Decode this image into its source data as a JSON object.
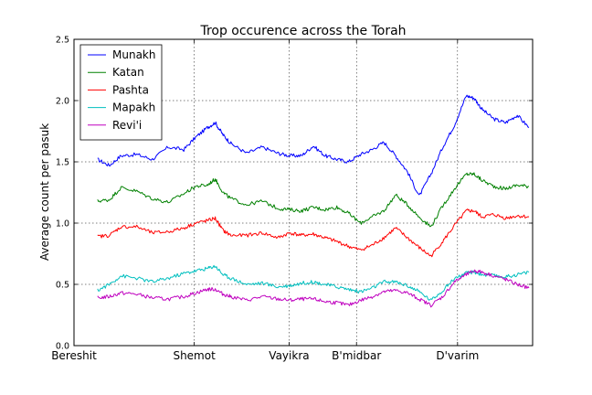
{
  "chart_data": {
    "type": "line",
    "title": "Trop occurence across the Torah",
    "xlabel": "",
    "ylabel": "Average count per pasuk",
    "ylim": [
      0.0,
      2.5
    ],
    "yticks": [
      "0.0",
      "0.5",
      "1.0",
      "1.5",
      "2.0",
      "2.5"
    ],
    "xlim": [
      0,
      5846
    ],
    "xticks": [
      {
        "label": "Bereshit",
        "x": 0
      },
      {
        "label": "Shemot",
        "x": 1533
      },
      {
        "label": "Vayikra",
        "x": 2742
      },
      {
        "label": "B'midbar",
        "x": 3601
      },
      {
        "label": "D'varim",
        "x": 4889
      }
    ],
    "grid": true,
    "legend_position": "top-left",
    "series": [
      {
        "name": "Munakh",
        "color": "#0000ff",
        "x": [
          300,
          450,
          600,
          800,
          1000,
          1200,
          1400,
          1550,
          1700,
          1800,
          1900,
          2000,
          2200,
          2400,
          2600,
          2750,
          2900,
          3050,
          3200,
          3350,
          3500,
          3650,
          3800,
          3950,
          4100,
          4250,
          4400,
          4550,
          4700,
          4850,
          5000,
          5100,
          5200,
          5350,
          5500,
          5650,
          5800
        ],
        "y": [
          1.52,
          1.47,
          1.55,
          1.56,
          1.52,
          1.62,
          1.6,
          1.7,
          1.78,
          1.82,
          1.72,
          1.65,
          1.57,
          1.62,
          1.57,
          1.55,
          1.55,
          1.63,
          1.55,
          1.52,
          1.5,
          1.56,
          1.6,
          1.66,
          1.55,
          1.42,
          1.22,
          1.4,
          1.62,
          1.8,
          2.04,
          2.02,
          1.93,
          1.85,
          1.82,
          1.88,
          1.78
        ]
      },
      {
        "name": "Katan",
        "color": "#008000",
        "x": [
          300,
          450,
          600,
          800,
          1000,
          1200,
          1400,
          1550,
          1700,
          1800,
          1900,
          2000,
          2200,
          2400,
          2600,
          2750,
          2900,
          3050,
          3200,
          3350,
          3500,
          3650,
          3800,
          3950,
          4100,
          4250,
          4400,
          4550,
          4700,
          4850,
          5000,
          5100,
          5200,
          5350,
          5500,
          5650,
          5800
        ],
        "y": [
          1.18,
          1.19,
          1.29,
          1.26,
          1.2,
          1.17,
          1.24,
          1.3,
          1.31,
          1.36,
          1.25,
          1.2,
          1.15,
          1.18,
          1.12,
          1.11,
          1.1,
          1.13,
          1.11,
          1.13,
          1.08,
          1.0,
          1.05,
          1.1,
          1.23,
          1.15,
          1.05,
          0.97,
          1.14,
          1.28,
          1.4,
          1.4,
          1.35,
          1.3,
          1.28,
          1.31,
          1.3
        ]
      },
      {
        "name": "Pashta",
        "color": "#ff0000",
        "x": [
          300,
          450,
          600,
          800,
          1000,
          1200,
          1400,
          1550,
          1700,
          1800,
          1900,
          2000,
          2200,
          2400,
          2600,
          2750,
          2900,
          3050,
          3200,
          3350,
          3500,
          3650,
          3800,
          3950,
          4100,
          4250,
          4400,
          4550,
          4700,
          4850,
          5000,
          5100,
          5200,
          5350,
          5500,
          5650,
          5800
        ],
        "y": [
          0.89,
          0.9,
          0.97,
          0.97,
          0.92,
          0.93,
          0.96,
          1.0,
          1.02,
          1.04,
          0.94,
          0.9,
          0.9,
          0.92,
          0.88,
          0.92,
          0.9,
          0.91,
          0.88,
          0.85,
          0.81,
          0.78,
          0.82,
          0.88,
          0.96,
          0.88,
          0.8,
          0.73,
          0.85,
          0.98,
          1.1,
          1.1,
          1.05,
          1.07,
          1.04,
          1.06,
          1.05
        ]
      },
      {
        "name": "Mapakh",
        "color": "#00bfbf",
        "x": [
          300,
          450,
          600,
          800,
          1000,
          1200,
          1400,
          1550,
          1700,
          1800,
          1900,
          2000,
          2200,
          2400,
          2600,
          2750,
          2900,
          3050,
          3200,
          3350,
          3500,
          3650,
          3800,
          3950,
          4100,
          4250,
          4400,
          4550,
          4700,
          4850,
          5000,
          5100,
          5200,
          5350,
          5500,
          5650,
          5800
        ],
        "y": [
          0.45,
          0.5,
          0.57,
          0.55,
          0.52,
          0.55,
          0.59,
          0.61,
          0.63,
          0.65,
          0.58,
          0.55,
          0.5,
          0.51,
          0.48,
          0.49,
          0.51,
          0.52,
          0.5,
          0.48,
          0.46,
          0.44,
          0.47,
          0.52,
          0.52,
          0.49,
          0.44,
          0.37,
          0.45,
          0.55,
          0.59,
          0.6,
          0.58,
          0.57,
          0.56,
          0.58,
          0.6
        ]
      },
      {
        "name": "Revi'i",
        "color": "#bf00bf",
        "x": [
          300,
          450,
          600,
          800,
          1000,
          1200,
          1400,
          1550,
          1700,
          1800,
          1900,
          2000,
          2200,
          2400,
          2600,
          2750,
          2900,
          3050,
          3200,
          3350,
          3500,
          3650,
          3800,
          3950,
          4100,
          4250,
          4400,
          4550,
          4700,
          4850,
          5000,
          5100,
          5200,
          5350,
          5500,
          5650,
          5800
        ],
        "y": [
          0.39,
          0.4,
          0.43,
          0.42,
          0.39,
          0.38,
          0.4,
          0.43,
          0.46,
          0.46,
          0.42,
          0.4,
          0.37,
          0.4,
          0.38,
          0.37,
          0.38,
          0.38,
          0.36,
          0.35,
          0.33,
          0.37,
          0.4,
          0.44,
          0.45,
          0.43,
          0.38,
          0.33,
          0.4,
          0.52,
          0.58,
          0.61,
          0.6,
          0.57,
          0.54,
          0.5,
          0.47
        ]
      }
    ]
  }
}
